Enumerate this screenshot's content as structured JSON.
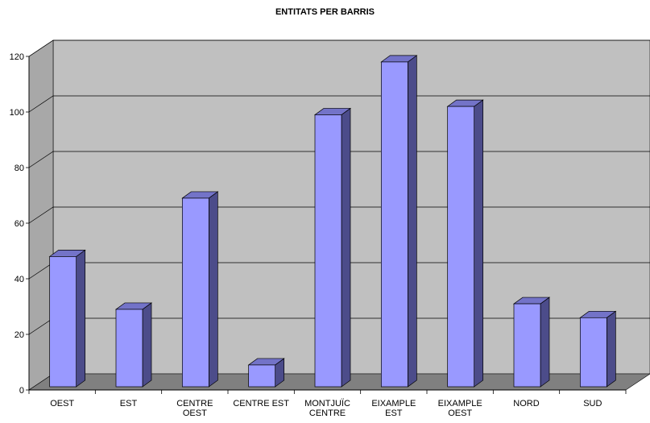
{
  "chart_data": {
    "type": "bar",
    "title": "ENTITATS PER BARRIS",
    "xlabel": "",
    "ylabel": "",
    "categories": [
      [
        "OEST"
      ],
      [
        "EST"
      ],
      [
        "CENTRE",
        "OEST"
      ],
      [
        "CENTRE EST"
      ],
      [
        "MONTJUÏC",
        "CENTRE"
      ],
      [
        "EIXAMPLE",
        "EST"
      ],
      [
        "EIXAMPLE",
        "OEST"
      ],
      [
        "NORD"
      ],
      [
        "SUD"
      ]
    ],
    "values": [
      48,
      29,
      69,
      9,
      99,
      118,
      102,
      31,
      26
    ],
    "ylim": [
      0,
      120
    ],
    "yticks": [
      "0",
      "20",
      "40",
      "60",
      "80",
      "100",
      "120"
    ],
    "grid": true,
    "legend": "none",
    "colors": {
      "bar_front": "#9999ff",
      "bar_side": "#4c4c8a",
      "bar_top": "#7373c8",
      "back_wall": "#c0c0c0",
      "side_wall": "#a8a8a8",
      "floor": "#808080"
    }
  }
}
